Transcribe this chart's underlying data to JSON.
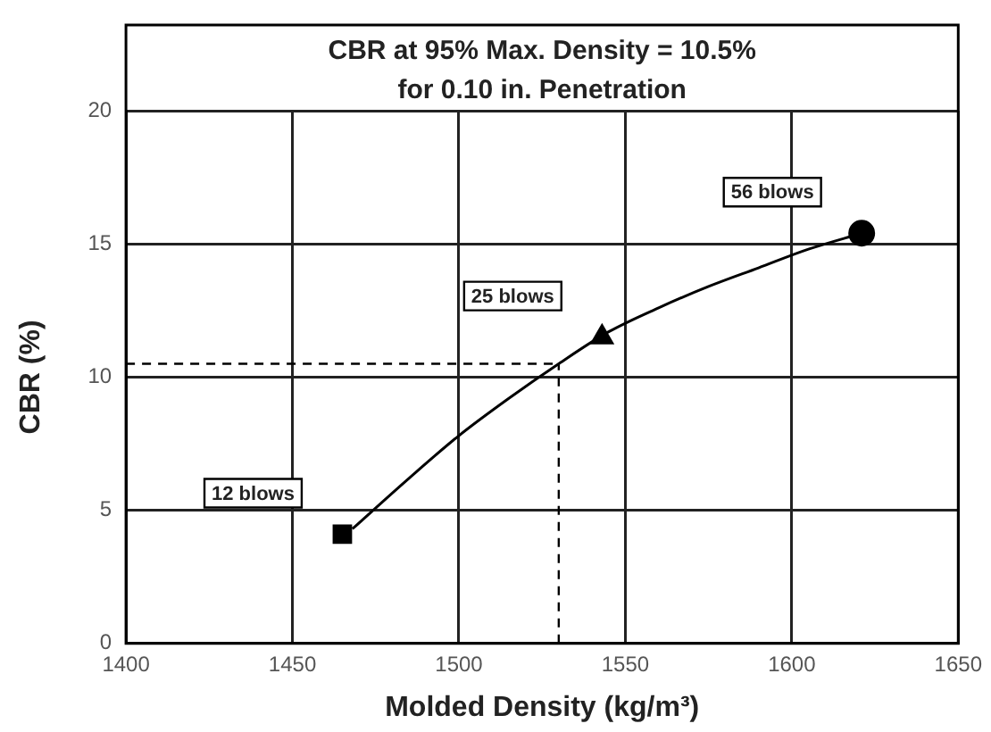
{
  "chart_data": {
    "type": "scatter",
    "title": "CBR at 95% Max. Density = 10.5%",
    "subtitle": "for 0.10 in. Penetration",
    "xlabel": "Molded Density (kg/m³)",
    "ylabel": "CBR (%)",
    "xlim": [
      1400,
      1650
    ],
    "xticks": [
      1400,
      1450,
      1500,
      1550,
      1600,
      1650
    ],
    "ylim": [
      0,
      20
    ],
    "yticks": [
      0,
      5,
      10,
      15,
      20
    ],
    "grid": true,
    "legend": false,
    "series": [
      {
        "type": "line",
        "color": "#000000",
        "marker": "none",
        "x": [
          1468,
          1485,
          1500,
          1515,
          1530,
          1545,
          1560,
          1575,
          1590,
          1605,
          1621
        ],
        "values": [
          4.3,
          6.2,
          7.8,
          9.2,
          10.5,
          11.7,
          12.6,
          13.4,
          14.1,
          14.8,
          15.4
        ]
      },
      {
        "type": "scatter",
        "color": "#000000",
        "marker": "square",
        "x": [
          1465
        ],
        "values": [
          4.1
        ]
      },
      {
        "type": "scatter",
        "color": "#000000",
        "marker": "triangle",
        "x": [
          1543
        ],
        "values": [
          11.5
        ]
      },
      {
        "type": "scatter",
        "color": "#000000",
        "marker": "circle",
        "x": [
          1621
        ],
        "values": [
          15.4
        ]
      }
    ],
    "ref_lines": [
      {
        "axis": "y",
        "value": 10.5,
        "line_style": "dashed",
        "color": "#000000"
      },
      {
        "axis": "x",
        "value": 1530,
        "line_style": "dashed",
        "color": "#000000"
      }
    ],
    "annotations": [
      {
        "text": "12 blows",
        "x": 1465,
        "y": 4.1
      },
      {
        "text": "25 blows",
        "x": 1543,
        "y": 11.5
      },
      {
        "text": "56 blows",
        "x": 1621,
        "y": 15.4
      }
    ]
  }
}
